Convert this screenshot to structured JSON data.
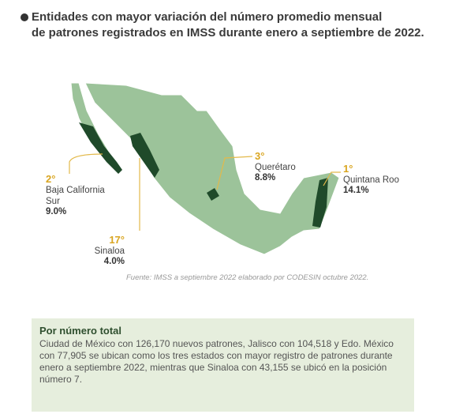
{
  "title": [
    "Entidades con mayor variación del número promedio mensual",
    "de patrones registrados en IMSS durante enero a septiembre de 2022."
  ],
  "callouts": [
    {
      "rank": "2°",
      "name": [
        "Baja California",
        "Sur"
      ],
      "value": "9.0%"
    },
    {
      "rank": "17°",
      "name": [
        "Sinaloa"
      ],
      "value": "4.0%"
    },
    {
      "rank": "3°",
      "name": [
        "Querétaro"
      ],
      "value": "8.8%"
    },
    {
      "rank": "1°",
      "name": [
        "Quintana Roo"
      ],
      "value": "14.1%"
    }
  ],
  "source": "Fuente: IMSS a septiembre 2022 elaborado por CODESIN octubre 2022.",
  "summary": {
    "heading": "Por número total",
    "text": "Ciudad de México con 126,170 nuevos patrones, Jalisco con 104,518  y Edo. México con 77,905 se ubican como los tres estados con mayor registro de patrones durante enero a septiembre 2022, mientras que Sinaloa con 43,155 se ubicó en la posición número 7."
  }
}
